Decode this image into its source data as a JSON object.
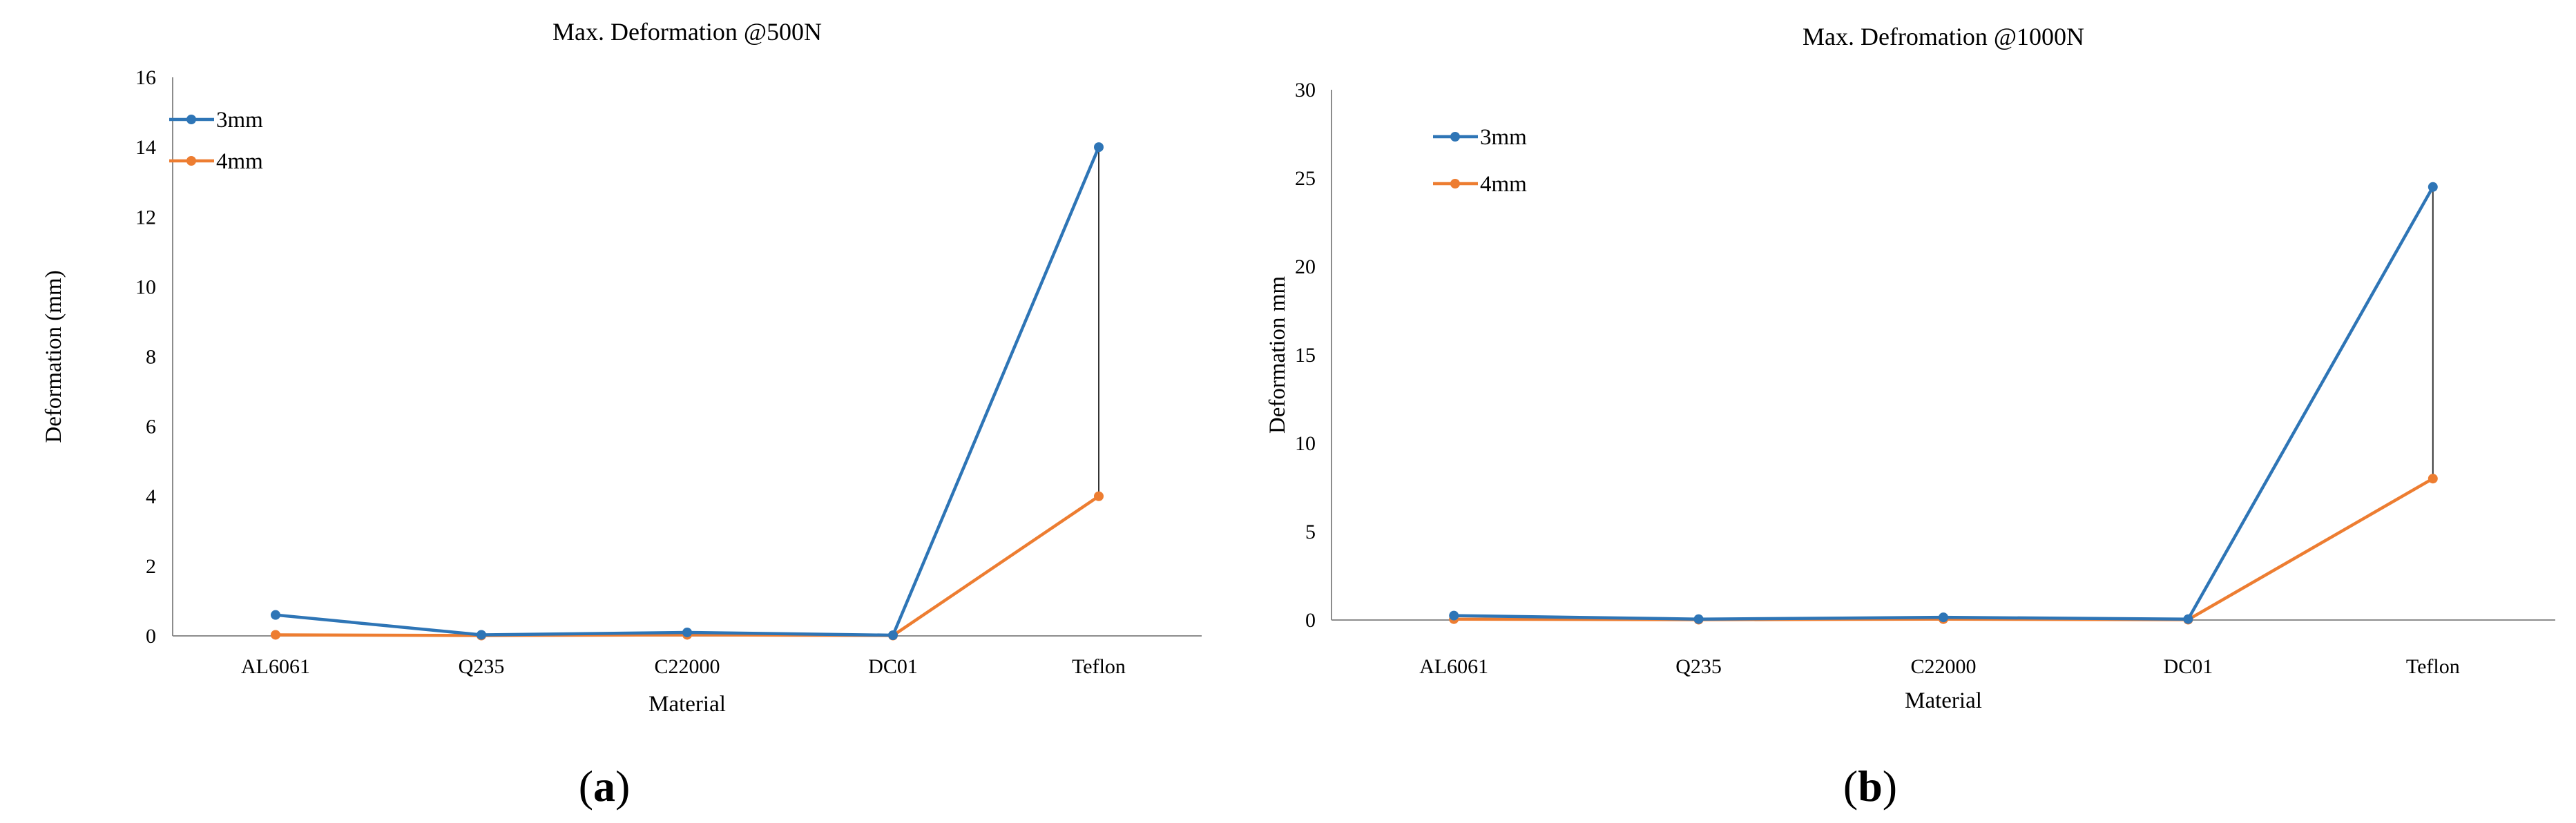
{
  "chart_data": [
    {
      "type": "line",
      "title": "Max. Deformation @500N",
      "xlabel": "Material",
      "ylabel": "Deformation (mm)",
      "ylim": [
        0,
        16
      ],
      "yticks": [
        "0",
        "2",
        "4",
        "6",
        "8",
        "10",
        "12",
        "14",
        "16"
      ],
      "categories": [
        "AL6061",
        "Q235",
        "C22000",
        "DC01",
        "Teflon"
      ],
      "series": [
        {
          "name": "3mm",
          "color": "#2e75b6",
          "values": [
            0.6,
            0.03,
            0.1,
            0.02,
            14.0
          ]
        },
        {
          "name": "4mm",
          "color": "#ed7d31",
          "values": [
            0.03,
            0.01,
            0.03,
            0.01,
            4.0
          ]
        }
      ],
      "grid": false,
      "legend": "top-left",
      "panel": "a"
    },
    {
      "type": "line",
      "title": "Max. Defromation @1000N",
      "xlabel": "Material",
      "ylabel": "Deformation mm",
      "ylim": [
        0,
        30
      ],
      "yticks": [
        "0",
        "5",
        "10",
        "15",
        "20",
        "25",
        "30"
      ],
      "categories": [
        "AL6061",
        "Q235",
        "C22000",
        "DC01",
        "Teflon"
      ],
      "series": [
        {
          "name": "3mm",
          "color": "#2e75b6",
          "values": [
            0.25,
            0.05,
            0.15,
            0.05,
            24.5
          ]
        },
        {
          "name": "4mm",
          "color": "#ed7d31",
          "values": [
            0.05,
            0.02,
            0.05,
            0.02,
            8.0
          ]
        }
      ],
      "grid": false,
      "legend": "top-left",
      "panel": "b"
    }
  ]
}
